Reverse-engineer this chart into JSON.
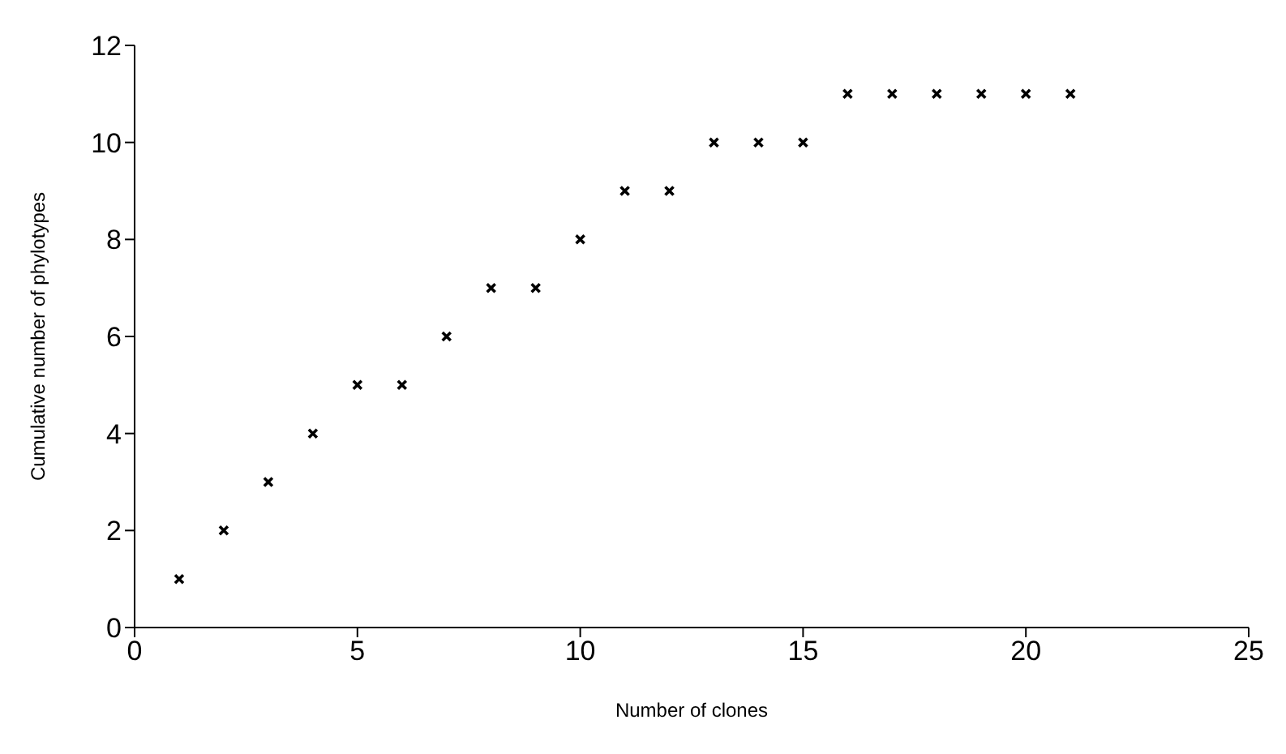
{
  "chart_data": {
    "type": "scatter",
    "xlabel": "Number of clones",
    "ylabel": "Cumulative number of phylotypes",
    "x": [
      1,
      2,
      3,
      4,
      5,
      6,
      7,
      8,
      9,
      10,
      11,
      12,
      13,
      14,
      15,
      16,
      17,
      18,
      19,
      20,
      21
    ],
    "values": [
      1,
      2,
      3,
      4,
      5,
      5,
      6,
      7,
      7,
      8,
      9,
      9,
      10,
      10,
      10,
      11,
      11,
      11,
      11,
      11,
      11
    ],
    "color": "#000000",
    "marker": "cross",
    "xlim": [
      0,
      25
    ],
    "xticks": [
      0,
      5,
      10,
      15,
      20,
      25
    ],
    "ylim": [
      0,
      12
    ],
    "yticks": [
      0,
      2,
      4,
      6,
      8,
      10,
      12
    ],
    "grid": false
  }
}
